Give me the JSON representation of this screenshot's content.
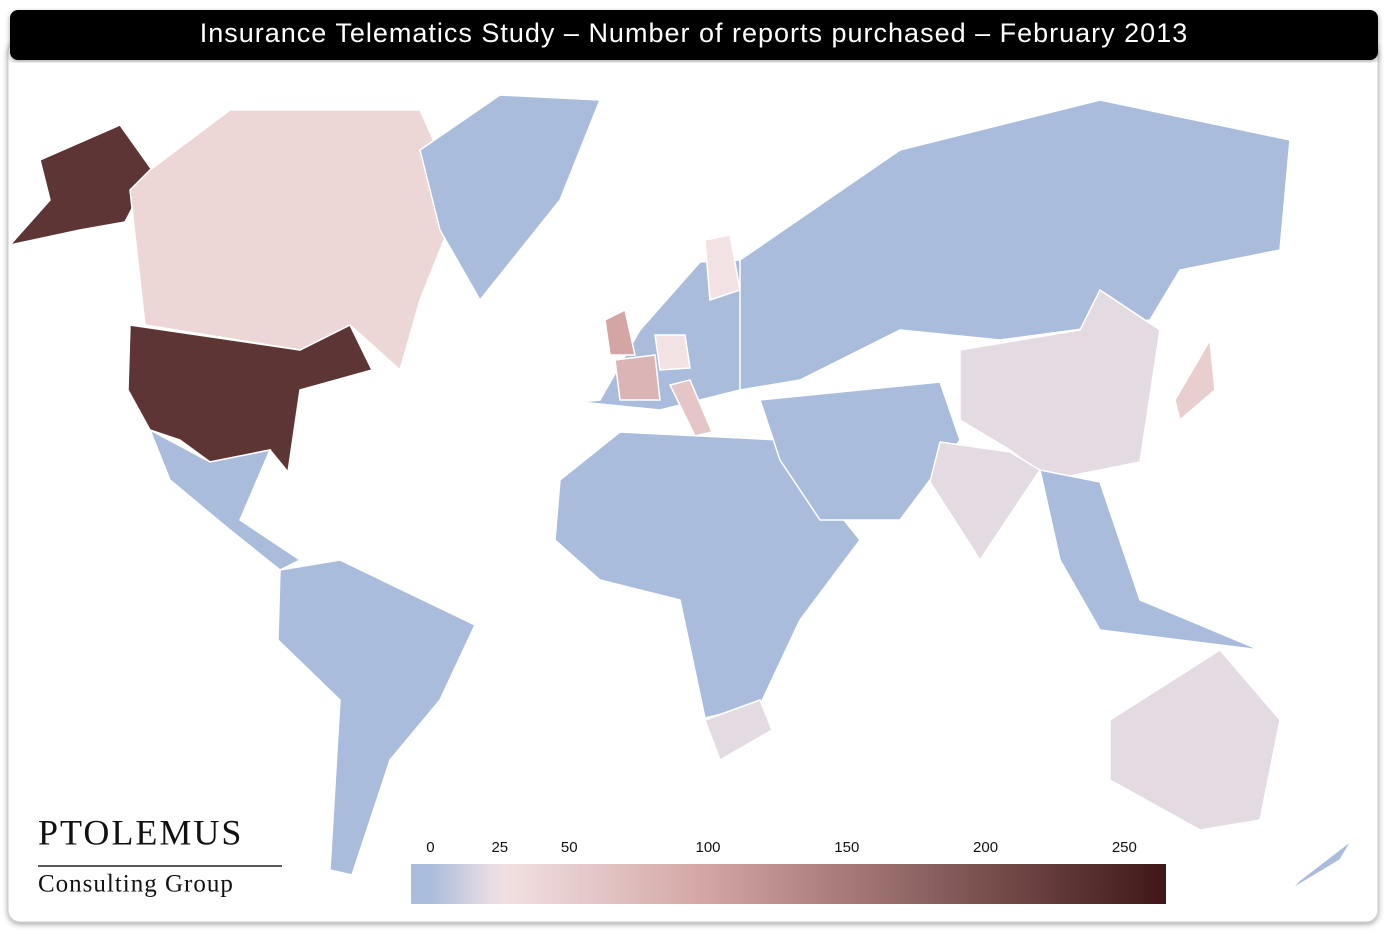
{
  "chart_data": {
    "type": "choropleth",
    "title": "Insurance Telematics Study – Number of reports purchased – February 2013",
    "values": [
      230,
      40,
      0,
      0,
      0,
      0,
      100,
      80,
      25,
      60,
      25,
      0,
      20,
      0,
      0,
      20,
      20,
      0,
      50,
      20,
      0
    ],
    "colorscale": [
      [
        0,
        "#a9bcdc"
      ],
      [
        25,
        "#f2e2e3"
      ],
      [
        100,
        "#d3a5a4"
      ],
      [
        265,
        "#3f1717"
      ]
    ],
    "clim": [
      -7,
      265
    ],
    "ticks": [
      0,
      25,
      50,
      100,
      150,
      200,
      250
    ]
  },
  "logo": {
    "name": "PTOLEMUS",
    "tagline": "Consulting Group"
  }
}
